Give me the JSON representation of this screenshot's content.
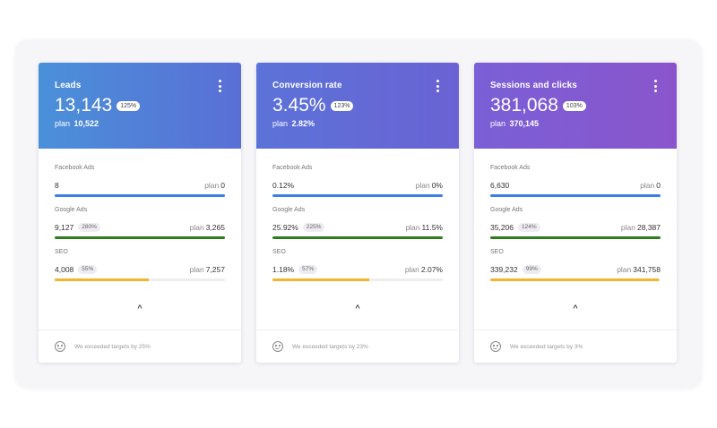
{
  "colors": {
    "facebook_bar": "#3d7fe6",
    "google_bar": "#2e7d1c",
    "seo_bar": "#f4b52c"
  },
  "cards": [
    {
      "title": "Leads",
      "value": "13,143",
      "badge": "125%",
      "plan_label": "plan",
      "plan_value": "10,522",
      "gradient": [
        "#4a90d9",
        "#5a6fd6"
      ],
      "metrics": [
        {
          "label": "Facebook Ads",
          "value": "8",
          "badge": "",
          "plan_label": "plan",
          "plan_value": "0",
          "fill": 1.0
        },
        {
          "label": "Google Ads",
          "value": "9,127",
          "badge": "280%",
          "plan_label": "plan",
          "plan_value": "3,265",
          "fill": 1.0
        },
        {
          "label": "SEO",
          "value": "4,008",
          "badge": "55%",
          "plan_label": "plan",
          "plan_value": "7,257",
          "fill": 0.55
        }
      ],
      "footer": "We exceeded targets by 25%"
    },
    {
      "title": "Conversion rate",
      "value": "3.45%",
      "badge": "123%",
      "plan_label": "plan",
      "plan_value": "2.82%",
      "gradient": [
        "#5b73d9",
        "#6a62d4"
      ],
      "metrics": [
        {
          "label": "Facebook Ads",
          "value": "0.12%",
          "badge": "",
          "plan_label": "plan",
          "plan_value": "0%",
          "fill": 1.0
        },
        {
          "label": "Google Ads",
          "value": "25.92%",
          "badge": "225%",
          "plan_label": "plan",
          "plan_value": "11.5%",
          "fill": 1.0
        },
        {
          "label": "SEO",
          "value": "1.18%",
          "badge": "57%",
          "plan_label": "plan",
          "plan_value": "2.07%",
          "fill": 0.57
        }
      ],
      "footer": "We exceeded targets by 23%"
    },
    {
      "title": "Sessions and clicks",
      "value": "381,068",
      "badge": "103%",
      "plan_label": "plan",
      "plan_value": "370,145",
      "gradient": [
        "#7a5fd6",
        "#8a55cc"
      ],
      "metrics": [
        {
          "label": "Facebook Ads",
          "value": "6,630",
          "badge": "",
          "plan_label": "plan",
          "plan_value": "0",
          "fill": 1.0
        },
        {
          "label": "Google Ads",
          "value": "35,206",
          "badge": "124%",
          "plan_label": "plan",
          "plan_value": "28,387",
          "fill": 1.0
        },
        {
          "label": "SEO",
          "value": "339,232",
          "badge": "99%",
          "plan_label": "plan",
          "plan_value": "341,758",
          "fill": 0.99
        }
      ],
      "footer": "We exceeded targets by 3%"
    }
  ],
  "icons": {
    "menu": "more-vertical-icon",
    "collapse": "chevron-up-icon",
    "footer": "smile-icon"
  },
  "collapse_glyph": "^"
}
